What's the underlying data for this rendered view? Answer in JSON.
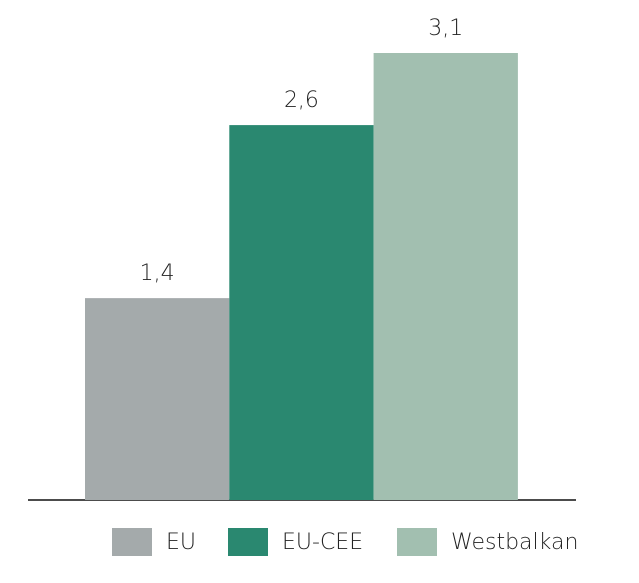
{
  "chart_data": {
    "type": "bar",
    "series": [
      {
        "name": "EU",
        "color": "#a4aaab",
        "values": [
          1.4
        ],
        "value_labels": [
          "1,4"
        ]
      },
      {
        "name": "EU-CEE",
        "color": "#2a8870",
        "values": [
          2.6
        ],
        "value_labels": [
          "2,6"
        ]
      },
      {
        "name": "Westbalkan",
        "color": "#a2bfb0",
        "values": [
          3.1
        ],
        "value_labels": [
          "3,1"
        ]
      }
    ]
  }
}
